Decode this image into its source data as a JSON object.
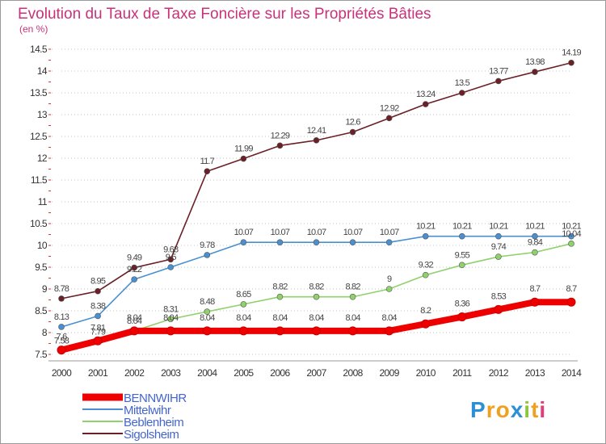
{
  "header": {
    "title": "Evolution du Taux de Taxe Foncière sur les Propriétés Bâties",
    "subtitle": "(en %)"
  },
  "brand": {
    "letters": [
      "P",
      "r",
      "o",
      "x",
      "i",
      "t",
      "i"
    ],
    "colors": [
      "#2d8fd6",
      "#f0a020",
      "#f0a020",
      "#2d8fd6",
      "#8cc63f",
      "#f0a020",
      "#e23b7a"
    ]
  },
  "chart_data": {
    "type": "line",
    "title": "Evolution du Taux de Taxe Foncière sur les Propriétés Bâties",
    "ylabel": "(en %)",
    "xlabel": "",
    "ylim": [
      7.5,
      14.5
    ],
    "y_ticks": [
      "7.5",
      "8",
      "8.5",
      "9",
      "9.5",
      "10",
      "10.5",
      "11",
      "11.5",
      "12",
      "12.5",
      "13",
      "13.5",
      "14",
      "14.5"
    ],
    "x": [
      "2000",
      "2001",
      "2002",
      "2003",
      "2004",
      "2005",
      "2006",
      "2007",
      "2008",
      "2009",
      "2010",
      "2011",
      "2012",
      "2013",
      "2014"
    ],
    "grid": "horizontal dotted",
    "legend_position": "bottom-left",
    "series": [
      {
        "name": "Sigolsheim",
        "color": "#6b1f26",
        "values": [
          8.78,
          8.95,
          9.49,
          9.68,
          11.7,
          11.99,
          12.29,
          12.41,
          12.6,
          12.92,
          13.24,
          13.5,
          13.77,
          13.98,
          14.19
        ],
        "labels": [
          "8.78",
          "8.95",
          "9.49",
          "9.68",
          "11.7",
          "11.99",
          "12.29",
          "12.41",
          "12.6",
          "12.92",
          "13.24",
          "13.5",
          "13.77",
          "13.98",
          "14.19"
        ]
      },
      {
        "name": "Mittelwihr",
        "color": "#4a90d0",
        "values": [
          8.13,
          8.38,
          9.22,
          9.5,
          9.78,
          10.07,
          10.07,
          10.07,
          10.07,
          10.07,
          10.21,
          10.21,
          10.21,
          10.21,
          10.21
        ],
        "labels": [
          "8.13",
          "8.38",
          "9.22",
          "9.5",
          "9.78",
          "10.07",
          "10.07",
          "10.07",
          "10.07",
          "10.07",
          "10.21",
          "10.21",
          "10.21",
          "10.21",
          "10.21"
        ]
      },
      {
        "name": "Beblenheim",
        "color": "#8fd16a",
        "values": [
          7.58,
          7.79,
          8.04,
          8.31,
          8.48,
          8.65,
          8.82,
          8.82,
          8.82,
          9.0,
          9.32,
          9.55,
          9.74,
          9.84,
          10.04
        ],
        "labels": [
          "7.58",
          "7.79",
          "8.04",
          "8.31",
          "8.48",
          "8.65",
          "8.82",
          "8.82",
          "8.82",
          "9",
          "9.32",
          "9.55",
          "9.74",
          "9.84",
          "10.04"
        ]
      },
      {
        "name": "BENNWIHR",
        "color": "#ee0000",
        "values": [
          7.6,
          7.81,
          8.04,
          8.04,
          8.04,
          8.04,
          8.04,
          8.04,
          8.04,
          8.04,
          8.2,
          8.36,
          8.53,
          8.7,
          8.7
        ],
        "labels": [
          "7.6",
          "7.81",
          "8.04",
          "8.04",
          "8.04",
          "8.04",
          "8.04",
          "8.04",
          "8.04",
          "8.04",
          "8.2",
          "8.36",
          "8.53",
          "8.7",
          "8.7"
        ]
      }
    ]
  }
}
